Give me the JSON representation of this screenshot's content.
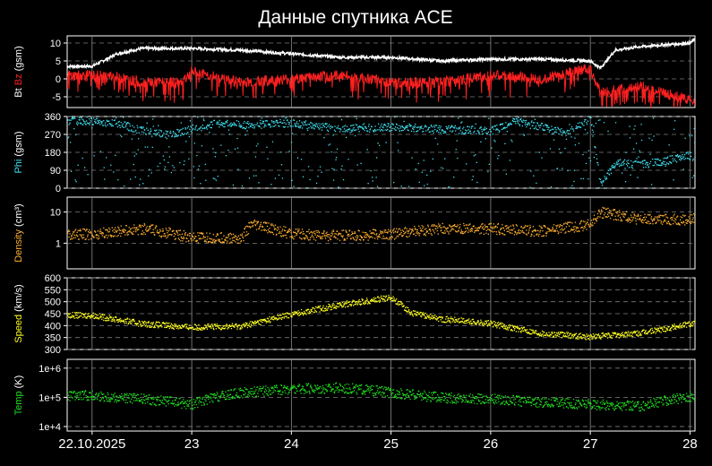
{
  "title": "Данные спутника ACE",
  "x_axis": {
    "range": [
      "2025-10-22T00:00",
      "2025-10-28T00:00"
    ],
    "tick_labels": [
      "22.10.2025",
      "23",
      "24",
      "25",
      "26",
      "27",
      "28"
    ]
  },
  "chart_data": [
    {
      "type": "line",
      "panel": "bt-bz",
      "ylabel_parts": [
        "Bt",
        "Bz",
        "(gsm)"
      ],
      "ylabel_colors": [
        "#ffffff",
        "#ff2020",
        "#ffffff"
      ],
      "yticks": [
        "10",
        "5",
        "0",
        "-5"
      ],
      "ytick_values": [
        10,
        5,
        0,
        -5
      ],
      "ylim": [
        -8,
        12
      ],
      "series": [
        {
          "name": "Bt",
          "color": "#ffffff",
          "x": [
            0,
            0.25,
            0.5,
            1,
            1.5,
            2,
            2.5,
            3,
            3.5,
            4,
            4.5,
            5,
            5.1,
            5.25,
            5.5,
            6,
            6.1
          ],
          "values": [
            3.5,
            7,
            8.5,
            8.5,
            8,
            7,
            6,
            6,
            5,
            5.5,
            5.5,
            5,
            3,
            8,
            9,
            10,
            12
          ]
        },
        {
          "name": "Bz",
          "color": "#ff2020",
          "x": [
            0,
            0.25,
            0.5,
            0.9,
            1,
            1.5,
            2,
            2.5,
            3,
            3.5,
            4,
            4.5,
            5,
            5.1,
            5.5,
            6,
            6.1
          ],
          "values": [
            1,
            0.5,
            -1,
            -1,
            2,
            -1,
            0,
            1,
            -1,
            -1,
            1,
            0,
            3,
            -4,
            -2,
            -6,
            -7
          ]
        }
      ]
    },
    {
      "type": "scatter",
      "panel": "phi",
      "ylabel_parts": [
        "Phi",
        "(gsm)"
      ],
      "ylabel_colors": [
        "#40e0f0",
        "#ffffff"
      ],
      "yticks": [
        "360",
        "270",
        "180",
        "90",
        "0"
      ],
      "ytick_values": [
        360,
        270,
        180,
        90,
        0
      ],
      "ylim": [
        0,
        360
      ],
      "series": [
        {
          "name": "Phi",
          "color": "#40e0f0",
          "x": [
            0,
            0.25,
            0.5,
            0.75,
            1,
            1.25,
            1.5,
            2,
            2.5,
            3,
            3.5,
            4,
            4.25,
            4.5,
            4.75,
            5,
            5.1,
            5.25,
            5.5,
            5.75,
            6,
            6.1
          ],
          "values": [
            340,
            330,
            290,
            270,
            300,
            330,
            320,
            330,
            300,
            310,
            300,
            290,
            340,
            310,
            280,
            345,
            20,
            130,
            120,
            140,
            170,
            130
          ]
        }
      ]
    },
    {
      "type": "scatter",
      "panel": "density",
      "ylabel_parts": [
        "Density",
        "(cm³)"
      ],
      "ylabel_colors": [
        "#ffb030",
        "#ffffff"
      ],
      "yscale": "log",
      "yticks": [
        "10",
        "1"
      ],
      "ytick_values": [
        10,
        1
      ],
      "ylim": [
        0.15,
        30
      ],
      "series": [
        {
          "name": "Density",
          "color": "#ffb030",
          "x": [
            0,
            0.5,
            1,
            1.5,
            1.6,
            2,
            2.5,
            3,
            3.5,
            4,
            4.5,
            5,
            5.1,
            5.5,
            6,
            6.1
          ],
          "values": [
            2,
            3,
            1.5,
            1.5,
            4,
            2,
            1.8,
            2,
            3,
            3,
            2.5,
            4,
            10,
            6,
            6,
            7
          ]
        }
      ]
    },
    {
      "type": "scatter",
      "panel": "speed",
      "ylabel_parts": [
        "Speed",
        "(km/s)"
      ],
      "ylabel_colors": [
        "#ffff20",
        "#ffffff"
      ],
      "yticks": [
        "600",
        "550",
        "500",
        "450",
        "400",
        "350",
        "300"
      ],
      "ytick_values": [
        600,
        550,
        500,
        450,
        400,
        350,
        300
      ],
      "ylim": [
        300,
        600
      ],
      "series": [
        {
          "name": "Speed",
          "color": "#ffff20",
          "x": [
            0,
            0.5,
            1,
            1.5,
            2,
            2.5,
            3,
            3.2,
            3.5,
            4,
            4.5,
            5,
            5.5,
            6,
            6.1
          ],
          "values": [
            445,
            410,
            395,
            400,
            450,
            490,
            520,
            455,
            430,
            410,
            370,
            355,
            370,
            410,
            415
          ]
        }
      ]
    },
    {
      "type": "scatter",
      "panel": "temp",
      "ylabel_parts": [
        "Temp",
        "(K)"
      ],
      "ylabel_colors": [
        "#20e020",
        "#ffffff"
      ],
      "yscale": "log",
      "yticks": [
        "1e+6",
        "1e+5",
        "1e+4"
      ],
      "ytick_values": [
        1000000,
        100000,
        10000
      ],
      "ylim": [
        7000,
        2000000
      ],
      "series": [
        {
          "name": "Temp",
          "color": "#20e020",
          "x": [
            0,
            0.5,
            1,
            1.5,
            2,
            2.5,
            3,
            3.5,
            4,
            4.5,
            5,
            5.5,
            6,
            6.1
          ],
          "values": [
            120000,
            90000,
            60000,
            150000,
            200000,
            220000,
            150000,
            100000,
            90000,
            70000,
            60000,
            50000,
            110000,
            100000
          ]
        }
      ]
    }
  ]
}
